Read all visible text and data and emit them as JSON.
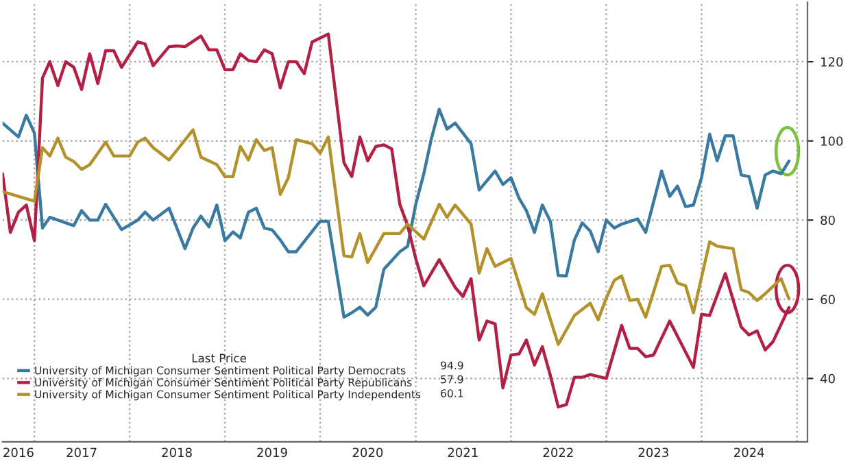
{
  "chart_data": {
    "type": "line",
    "legend": "bottom left",
    "legend_title": "Last Price",
    "grid": true,
    "annotations": [
      "94.9",
      "57.9",
      "60.1"
    ],
    "xlim": [
      "2016-09-01",
      "2025-02-10"
    ],
    "ylim": [
      24,
      135
    ],
    "yticks": [
      40,
      60,
      80,
      100,
      120
    ],
    "xticks": [
      {
        "value": "2016-11-01",
        "label": "2016"
      },
      {
        "value": "2017-01-01",
        "label": null
      },
      {
        "value": "2017-07-01",
        "label": "2017"
      },
      {
        "value": "2018-01-01",
        "label": null
      },
      {
        "value": "2018-07-01",
        "label": "2018"
      },
      {
        "value": "2019-01-01",
        "label": null
      },
      {
        "value": "2019-07-01",
        "label": "2019"
      },
      {
        "value": "2020-01-01",
        "label": null
      },
      {
        "value": "2020-07-01",
        "label": "2020"
      },
      {
        "value": "2021-01-01",
        "label": null
      },
      {
        "value": "2021-07-01",
        "label": "2021"
      },
      {
        "value": "2022-01-01",
        "label": null
      },
      {
        "value": "2022-07-01",
        "label": "2022"
      },
      {
        "value": "2023-01-01",
        "label": null
      },
      {
        "value": "2023-07-01",
        "label": "2023"
      },
      {
        "value": "2024-01-01",
        "label": null
      },
      {
        "value": "2024-07-01",
        "label": "2024"
      },
      {
        "value": "2025-01-01",
        "label": null
      }
    ],
    "series": [
      {
        "name": "University of Michigan Consumer Sentiment Political Party Democrats",
        "color": "#3b7aa0",
        "x": [
          "2016-09",
          "2016-11",
          "2016-12",
          "2017-01",
          "2017-02",
          "2017-03",
          "2017-06",
          "2017-07",
          "2017-08",
          "2017-09",
          "2017-10",
          "2017-12",
          "2018-02",
          "2018-03",
          "2018-04",
          "2018-06",
          "2018-08",
          "2018-09",
          "2018-10",
          "2018-11",
          "2018-12",
          "2019-01",
          "2019-02",
          "2019-03",
          "2019-04",
          "2019-05",
          "2019-06",
          "2019-07",
          "2019-08",
          "2019-09",
          "2019-10",
          "2020-01",
          "2020-02",
          "2020-04",
          "2020-05",
          "2020-06",
          "2020-07",
          "2020-08",
          "2020-09",
          "2020-11",
          "2020-12",
          "2021-01",
          "2021-02",
          "2021-03",
          "2021-04",
          "2021-05",
          "2021-06",
          "2021-08",
          "2021-09",
          "2021-11",
          "2021-12",
          "2022-01",
          "2022-02",
          "2022-03",
          "2022-04",
          "2022-05",
          "2022-06",
          "2022-07",
          "2022-08",
          "2022-09",
          "2022-10",
          "2022-11",
          "2022-12",
          "2023-01",
          "2023-02",
          "2023-03",
          "2023-05",
          "2023-06",
          "2023-08",
          "2023-09",
          "2023-10",
          "2023-11",
          "2023-12",
          "2024-01",
          "2024-02",
          "2024-03",
          "2024-04",
          "2024-05",
          "2024-06",
          "2024-07",
          "2024-08",
          "2024-09",
          "2024-10",
          "2024-11",
          "2024-12"
        ],
        "values": [
          104.5,
          101,
          106.5,
          102,
          78,
          80.7,
          78.6,
          82.4,
          80,
          80,
          84,
          77.6,
          80,
          82,
          80,
          83,
          72.8,
          78,
          81,
          78.3,
          83.8,
          74.8,
          77,
          75.5,
          82,
          83,
          78,
          77.5,
          75,
          72,
          72,
          79.7,
          79.7,
          55.5,
          56.6,
          58,
          56,
          58,
          67.6,
          72,
          73.4,
          84,
          91.7,
          100.3,
          108,
          103,
          104.5,
          99.3,
          87.6,
          92.4,
          89,
          90.7,
          85.5,
          82.4,
          76.9,
          83.8,
          79.7,
          66,
          65.9,
          75,
          79.3,
          77.2,
          72,
          80,
          78,
          79,
          80.3,
          76.9,
          92.4,
          86,
          88.6,
          83.4,
          83.8,
          90.7,
          101.7,
          95,
          101.3,
          101.3,
          91.4,
          91,
          83,
          91.4,
          92.4,
          91.7,
          94.9
        ]
      },
      {
        "name": "University of Michigan Consumer Sentiment Political Party Republicans",
        "color": "#b22045",
        "x": [
          "2016-09",
          "2016-10",
          "2016-11",
          "2016-12",
          "2017-01",
          "2017-02",
          "2017-03",
          "2017-04",
          "2017-05",
          "2017-06",
          "2017-07",
          "2017-08",
          "2017-09",
          "2017-10",
          "2017-11",
          "2017-12",
          "2018-02",
          "2018-03",
          "2018-04",
          "2018-06",
          "2018-07",
          "2018-08",
          "2018-10",
          "2018-11",
          "2018-12",
          "2019-01",
          "2019-02",
          "2019-03",
          "2019-04",
          "2019-05",
          "2019-06",
          "2019-07",
          "2019-08",
          "2019-09",
          "2019-10",
          "2019-11",
          "2019-12",
          "2020-02",
          "2020-04",
          "2020-05",
          "2020-06",
          "2020-07",
          "2020-08",
          "2020-09",
          "2020-10",
          "2020-11",
          "2020-12",
          "2021-01",
          "2021-02",
          "2021-04",
          "2021-06",
          "2021-07",
          "2021-08",
          "2021-09",
          "2021-10",
          "2021-11",
          "2021-12",
          "2022-01",
          "2022-02",
          "2022-03",
          "2022-04",
          "2022-05",
          "2022-06",
          "2022-07",
          "2022-08",
          "2022-09",
          "2022-10",
          "2022-11",
          "2023-01",
          "2023-03",
          "2023-04",
          "2023-05",
          "2023-06",
          "2023-07",
          "2023-09",
          "2023-12",
          "2024-01",
          "2024-02",
          "2024-04",
          "2024-06",
          "2024-07",
          "2024-08",
          "2024-09",
          "2024-10",
          "2024-12"
        ],
        "values": [
          91.7,
          76.9,
          82,
          83.8,
          74.8,
          115.9,
          120,
          114,
          120,
          118.6,
          113,
          122,
          114.5,
          122.8,
          122.8,
          118.6,
          125,
          124.5,
          119,
          123.8,
          124,
          123.8,
          126.5,
          123,
          123,
          118,
          118,
          122,
          120.3,
          120,
          123,
          122,
          113.4,
          120,
          120,
          117,
          125,
          127,
          94.5,
          91,
          101,
          95,
          98.6,
          99,
          98,
          84,
          78.6,
          70.3,
          63.4,
          70,
          63,
          60.7,
          65.2,
          49.7,
          54.5,
          53.8,
          37.6,
          45.9,
          46.2,
          49.7,
          43.4,
          48,
          40.7,
          32.8,
          33.4,
          40.3,
          40.3,
          41,
          40,
          53.4,
          47.6,
          47.6,
          45.5,
          45.9,
          54.5,
          42.8,
          56.2,
          55.9,
          66.5,
          53,
          51,
          52,
          47.2,
          49.3,
          57.9
        ]
      },
      {
        "name": "University of Michigan Consumer Sentiment Political Party Independents",
        "color": "#b3922c",
        "x": [
          "2016-09",
          "2017-01",
          "2017-02",
          "2017-03",
          "2017-04",
          "2017-05",
          "2017-06",
          "2017-07",
          "2017-08",
          "2017-10",
          "2017-11",
          "2018-01",
          "2018-02",
          "2018-03",
          "2018-04",
          "2018-06",
          "2018-09",
          "2018-10",
          "2018-12",
          "2019-01",
          "2019-02",
          "2019-03",
          "2019-04",
          "2019-05",
          "2019-06",
          "2019-07",
          "2019-08",
          "2019-09",
          "2019-10",
          "2019-12",
          "2020-01",
          "2020-02",
          "2020-04",
          "2020-05",
          "2020-06",
          "2020-07",
          "2020-09",
          "2020-11",
          "2020-12",
          "2021-02",
          "2021-04",
          "2021-05",
          "2021-06",
          "2021-08",
          "2021-09",
          "2021-10",
          "2021-11",
          "2022-01",
          "2022-03",
          "2022-04",
          "2022-05",
          "2022-07",
          "2022-09",
          "2022-11",
          "2022-12",
          "2023-01",
          "2023-02",
          "2023-03",
          "2023-04",
          "2023-05",
          "2023-06",
          "2023-08",
          "2023-09",
          "2023-10",
          "2023-11",
          "2023-12",
          "2024-02",
          "2024-03",
          "2024-05",
          "2024-06",
          "2024-07",
          "2024-08",
          "2024-09",
          "2024-11",
          "2024-12"
        ],
        "values": [
          87.2,
          84.8,
          98.3,
          96.2,
          100.7,
          95.9,
          94.8,
          92.8,
          94,
          99.7,
          96.2,
          96.2,
          99.7,
          100.7,
          98.3,
          95.2,
          102.8,
          95.9,
          94,
          91,
          91,
          98.6,
          95.2,
          100.3,
          97.6,
          98.3,
          86.5,
          90.7,
          100.3,
          99.3,
          96.9,
          101,
          71,
          70.7,
          76.6,
          69.3,
          76.6,
          76.6,
          79,
          75.2,
          84,
          80.7,
          83.8,
          79,
          66.6,
          72.8,
          68.3,
          70.3,
          57.9,
          56.2,
          61.4,
          48.6,
          55.9,
          59,
          54.8,
          60.3,
          64.8,
          65.9,
          59.7,
          60,
          55.5,
          68.3,
          68.6,
          64.1,
          63.4,
          56.6,
          74.5,
          73.4,
          72.8,
          62.4,
          61.7,
          59.7,
          61.4,
          65.2,
          60.1
        ]
      }
    ]
  }
}
